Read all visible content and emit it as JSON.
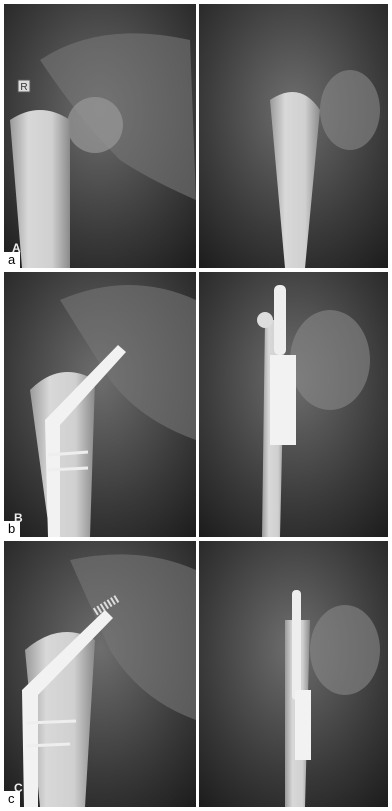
{
  "panels": [
    {
      "label": "a",
      "marker": "A",
      "side_marker": "R"
    },
    {
      "label": "b",
      "marker": "B"
    },
    {
      "label": "c",
      "marker": "C"
    }
  ]
}
